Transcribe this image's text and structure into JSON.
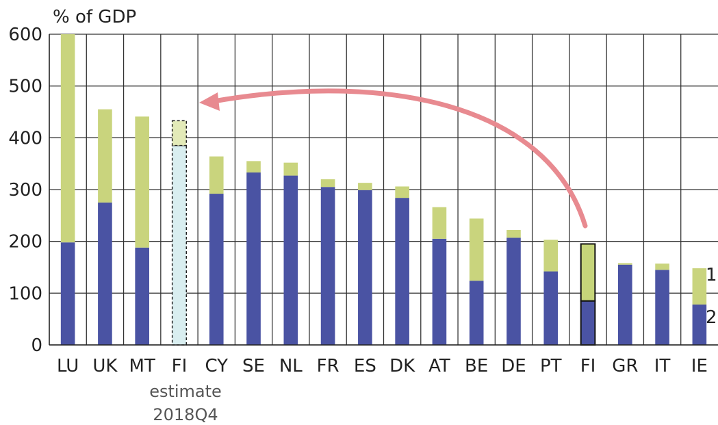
{
  "chart_data": {
    "type": "bar",
    "stacked": true,
    "ylabel": "% of GDP",
    "ylim": [
      0,
      600
    ],
    "yticks": [
      0,
      100,
      200,
      300,
      400,
      500,
      600
    ],
    "grid": true,
    "categories": [
      "LU",
      "UK",
      "MT",
      "FI",
      "CY",
      "SE",
      "NL",
      "FR",
      "ES",
      "DK",
      "AT",
      "BE",
      "DE",
      "PT",
      "FI",
      "GR",
      "IT",
      "IE"
    ],
    "estimate_index": 3,
    "highlight_index": 14,
    "estimate_note": [
      "estimate",
      "2018Q4"
    ],
    "series": [
      {
        "name": "2",
        "values": [
          198,
          275,
          188,
          385,
          292,
          333,
          327,
          305,
          299,
          284,
          205,
          124,
          207,
          142,
          85,
          155,
          145,
          78
        ]
      },
      {
        "name": "1",
        "values": [
          402,
          180,
          253,
          48,
          72,
          22,
          25,
          15,
          14,
          22,
          61,
          120,
          15,
          61,
          110,
          3,
          12,
          70
        ]
      }
    ],
    "annotation": "arrow from highlighted FI bar to estimate FI bar",
    "colors": {
      "series2": "#4a53a3",
      "series1": "#c9d47d",
      "series1_highlight": "#c6d57a",
      "estimate_fill": "#d9eef0",
      "estimate_top_fill": "#e3eab8",
      "arrow": "#e88a90",
      "grid": "#333333"
    }
  }
}
